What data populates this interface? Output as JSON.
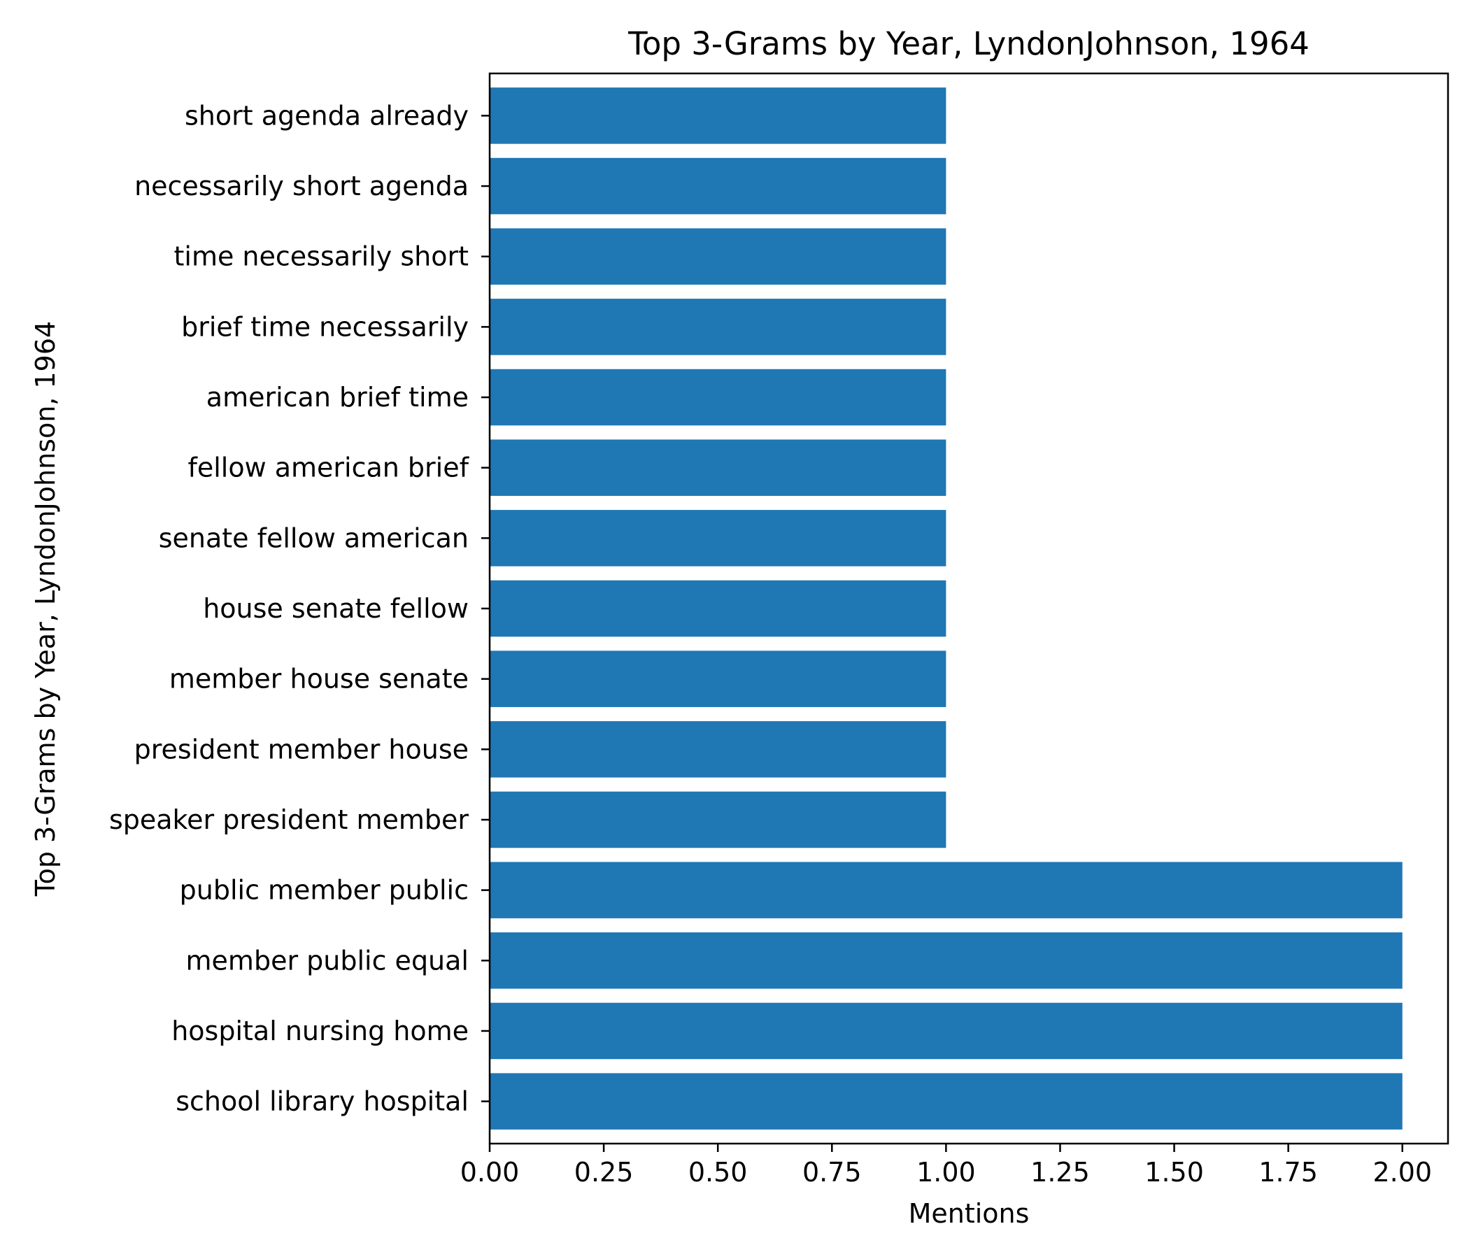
{
  "chart_data": {
    "type": "bar",
    "orientation": "horizontal",
    "title": "Top 3-Grams by Year, LyndonJohnson, 1964",
    "xlabel": "Mentions",
    "ylabel": "Top 3-Grams by Year, LyndonJohnson, 1964",
    "xlim": [
      0,
      2.1
    ],
    "xticks": [
      "0.00",
      "0.25",
      "0.50",
      "0.75",
      "1.00",
      "1.25",
      "1.50",
      "1.75",
      "2.00"
    ],
    "grid": false,
    "categories": [
      "school library hospital",
      "hospital nursing home",
      "member public equal",
      "public member public",
      "speaker president member",
      "president member house",
      "member house senate",
      "house senate fellow",
      "senate fellow american",
      "fellow american brief",
      "american brief time",
      "brief time necessarily",
      "time necessarily short",
      "necessarily short agenda",
      "short agenda already"
    ],
    "values": [
      2,
      2,
      2,
      2,
      1,
      1,
      1,
      1,
      1,
      1,
      1,
      1,
      1,
      1,
      1
    ],
    "bar_color": "#1f77b4"
  }
}
